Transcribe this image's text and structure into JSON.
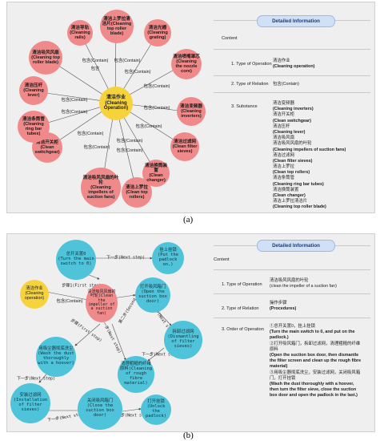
{
  "panel_a": {
    "center": "清洁作业\n(Cleaning Operation)",
    "nodes": [
      "清洁上罗拉清洁片(Cleaning top roller blade)",
      "清洁光栅\n(Cleaning grating)",
      "清洁喷嘴罩芯\n(Cleaning the nozzle core)",
      "清洁变频器\n(Cleaning inverters)",
      "清洁过滤网\n(Clean filter sieves)",
      "清洁换筒装置\n(Clean changer)",
      "清洁上罗拉\n(Clean top rollers)",
      "清洁吸风风扇的叶轮\n(Cleaning impellers of suction fans)",
      "清洁开关柜\n(Clean switchgear)",
      "清洁条筒管\n(Cleaning ring bar tubes)",
      "清洁压杆\n(Cleaning lever)",
      "清洁吸风风扇\n(Cleaning top roller blade)",
      "清洁导轨\n(Cleaning rails)"
    ],
    "edge_label": "包含(Contain)",
    "edge_labels": [
      "包含(Contain)",
      "包含(Contain)",
      "包含(Contain)",
      "包含(Contain)",
      "包含(Contain)",
      "包含(Contain)",
      "包含(Contain)",
      "包含(Contain)",
      "包含(Contain)",
      "包含(Contain)",
      "包含(Contain)",
      "包含(Contain)",
      "包含"
    ],
    "info": {
      "header": "Detailed Information",
      "content": "Content",
      "rows": [
        {
          "key": "1. Type of Operation",
          "lines": [
            {
              "t": "清洁作业",
              "b": false
            },
            {
              "t": "(Cleaning operation)",
              "b": true
            }
          ]
        },
        {
          "key": "2. Type of Relation",
          "lines": [
            {
              "t": "包含(Contain)",
              "b": false
            }
          ]
        },
        {
          "key": "3. Substance",
          "lines": [
            {
              "t": "清洁变频器",
              "b": false
            },
            {
              "t": "(Cleaning inverters)",
              "b": true
            },
            {
              "t": "清洁开关柜",
              "b": false
            },
            {
              "t": "(Clean switchgear)",
              "b": true
            },
            {
              "t": "清洁压杆",
              "b": false
            },
            {
              "t": "(Cleaning lever)",
              "b": true
            },
            {
              "t": "清洁吸风扇",
              "b": false
            },
            {
              "t": "清洁吸风风扇的叶轮",
              "b": false
            },
            {
              "t": "(Cleaning impellers of suction fans)",
              "b": true
            },
            {
              "t": "清洁过滤网",
              "b": false
            },
            {
              "t": "(Clean filter sieves)",
              "b": true
            },
            {
              "t": "清洁上罗拉",
              "b": false
            },
            {
              "t": "(Clean top rollers)",
              "b": true
            },
            {
              "t": "清洁条筒管",
              "b": false
            },
            {
              "t": "(Cleaning ring bar tubes)",
              "b": true
            },
            {
              "t": "清洁换筒装置",
              "b": false
            },
            {
              "t": "(Clean changer)",
              "b": true
            },
            {
              "t": "清洁上罗拉清洁片",
              "b": false
            },
            {
              "t": "(Cleaning top roller blade)",
              "b": true
            }
          ]
        }
      ]
    },
    "caption": "(a)"
  },
  "panel_b": {
    "nodes": {
      "switch": "总开关置0\n(Turn the main switch to 0)",
      "padlock": "挂上挂锁\n(Put the padlock on.)",
      "clean_op": "清洁作业\n(Cleaning operation)",
      "impeller": "清洁吸风风扇的叶轮(Clean the impeller of a suction fan)",
      "open_door": "打开吸风箱门\n(Open the suction box door)",
      "dismantle": "拆卸过滤网\n(Dismantling of filter sieves)",
      "wash": "用吸尘器彻底洗尘(Wash the dust thoroughly with a hoover)",
      "clean_rough": "清理粗糙的纤维原料(Cleaning of rough fibre material)",
      "install": "安装过滤网\n(Installation of filter sieves)",
      "close_door": "关闭吸风箱门\n(Close the suction box door)",
      "unlock": "打开挂锁\n(Unlock the padlock)"
    },
    "edges": {
      "next1": "下一步(Next step)",
      "step1": "步骤1(First step)",
      "contain": "包含(Contain)",
      "second": "第二步(Second step)",
      "next2": "下一步(Next step)",
      "first2": "步骤(First step)",
      "next3": "下一步(Next step)",
      "next4": "下一步(Next step)",
      "next5": "下一步(Next step)",
      "next6": "下一步(Next step)",
      "next7": "下一步(Next step)"
    },
    "info": {
      "header": "Detailed Information",
      "content": "Content",
      "rows": [
        {
          "key": "1. Type of Operation",
          "lines": [
            {
              "t": "清洁吸风风扇的叶轮",
              "b": false
            },
            {
              "t": "(clean the impeller of a suction fan)",
              "b": false
            }
          ]
        },
        {
          "key": "2. Type of Relation",
          "lines": [
            {
              "t": "操作步骤",
              "b": false
            },
            {
              "t": "(Procedures)",
              "b": true
            }
          ]
        },
        {
          "key": "3. Order of Operation",
          "lines": [
            {
              "t": "①总开关置0，挂上挂锁",
              "b": false
            },
            {
              "t": "(Turn the main switch to 0, and put on the",
              "b": true
            },
            {
              "t": "padlock.)",
              "b": true
            },
            {
              "t": "②打开吸风箱门，拆卸过滤网，清理粗糙的纤维",
              "b": false
            },
            {
              "t": "原料",
              "b": false
            },
            {
              "t": "(Open the suction box door, then dismantle",
              "b": true
            },
            {
              "t": "the filter screen and clean up the rough fibre",
              "b": true
            },
            {
              "t": "material)",
              "b": true
            },
            {
              "t": "③用吸尘器彻底洗尘，安装过滤网，关闭吸风箱",
              "b": false
            },
            {
              "t": "门，打开挂锁",
              "b": false
            },
            {
              "t": "(Wash the dust thoroughly with a hoover,",
              "b": true
            },
            {
              "t": "then turn the filter sieve, close the suction",
              "b": true
            },
            {
              "t": "box door and open the padlock in the last.)",
              "b": true
            }
          ]
        }
      ]
    },
    "caption": "(b)"
  },
  "colors": {
    "pink": "#f08a8a",
    "yellow": "#f6d33a",
    "cyan": "#4fc3d9",
    "header_bg": "#cfe0f7"
  }
}
